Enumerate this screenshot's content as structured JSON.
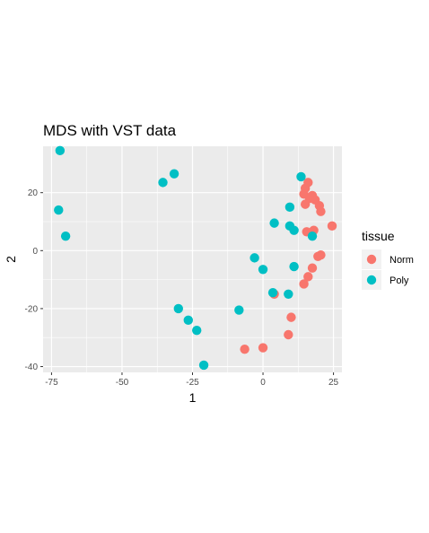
{
  "chart_data": {
    "type": "scatter",
    "title": "MDS with VST data",
    "xlabel": "1",
    "ylabel": "2",
    "xlim": [
      -78,
      28
    ],
    "ylim": [
      -42,
      36
    ],
    "xticks": [
      -75,
      -50,
      -25,
      0,
      25
    ],
    "yticks": [
      -40,
      -20,
      0,
      20
    ],
    "grid": true,
    "legend": {
      "title": "tissue",
      "placement": "right"
    },
    "series": [
      {
        "name": "Norm",
        "color": "#F8766D",
        "points": [
          {
            "x": 16,
            "y": 23.5
          },
          {
            "x": 15,
            "y": 21.5
          },
          {
            "x": 14.5,
            "y": 19.5
          },
          {
            "x": 17.5,
            "y": 19
          },
          {
            "x": 18.5,
            "y": 17.5
          },
          {
            "x": 16.5,
            "y": 18
          },
          {
            "x": 15,
            "y": 16
          },
          {
            "x": 20,
            "y": 15.5
          },
          {
            "x": 20.5,
            "y": 13.5
          },
          {
            "x": 24.5,
            "y": 8.5
          },
          {
            "x": 15.5,
            "y": 6.5
          },
          {
            "x": 18,
            "y": 7
          },
          {
            "x": 20.5,
            "y": -1.5
          },
          {
            "x": 19.5,
            "y": -2
          },
          {
            "x": 17.5,
            "y": -6
          },
          {
            "x": 16,
            "y": -9
          },
          {
            "x": 14.5,
            "y": -11.5
          },
          {
            "x": 4,
            "y": -15
          },
          {
            "x": 10,
            "y": -23
          },
          {
            "x": 9,
            "y": -29
          },
          {
            "x": 0,
            "y": -33.5
          },
          {
            "x": -6.5,
            "y": -34
          }
        ]
      },
      {
        "name": "Poly",
        "color": "#00BFC4",
        "points": [
          {
            "x": -72,
            "y": 34.5
          },
          {
            "x": -72.5,
            "y": 14
          },
          {
            "x": -70,
            "y": 5
          },
          {
            "x": -31.5,
            "y": 26.5
          },
          {
            "x": -35.5,
            "y": 23.5
          },
          {
            "x": 13.5,
            "y": 25.5
          },
          {
            "x": 9.5,
            "y": 15
          },
          {
            "x": 4,
            "y": 9.5
          },
          {
            "x": 9.5,
            "y": 8.5
          },
          {
            "x": 11,
            "y": 7
          },
          {
            "x": 17.5,
            "y": 5
          },
          {
            "x": -3,
            "y": -2.5
          },
          {
            "x": 0,
            "y": -6.5
          },
          {
            "x": 11,
            "y": -5.5
          },
          {
            "x": 3.5,
            "y": -14.5
          },
          {
            "x": 9,
            "y": -15
          },
          {
            "x": -8.5,
            "y": -20.5
          },
          {
            "x": -30,
            "y": -20
          },
          {
            "x": -26.5,
            "y": -24
          },
          {
            "x": -23.5,
            "y": -27.5
          },
          {
            "x": -21,
            "y": -39.5
          }
        ]
      }
    ]
  }
}
